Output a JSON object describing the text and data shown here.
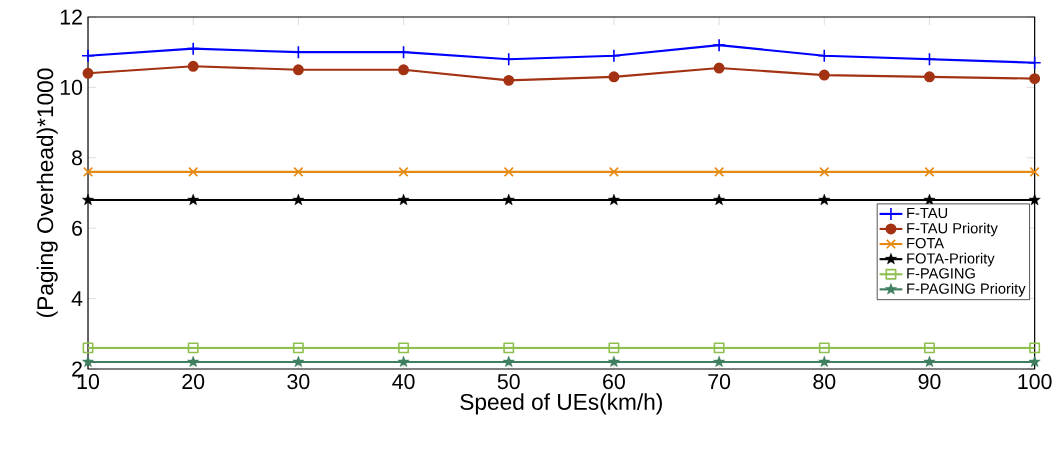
{
  "chart_data": {
    "type": "line",
    "xlabel": "Speed of UEs(km/h)",
    "ylabel": "(Paging Overhead)*1000",
    "x": [
      10,
      20,
      30,
      40,
      50,
      60,
      70,
      80,
      90,
      100
    ],
    "xlim": [
      10,
      100
    ],
    "xticks": [
      10,
      20,
      30,
      40,
      50,
      60,
      70,
      80,
      90,
      100
    ],
    "ylim": [
      2,
      12
    ],
    "yticks": [
      2,
      4,
      6,
      8,
      10,
      12
    ],
    "legend": "right",
    "grid": false,
    "line_style": "solid",
    "series": [
      {
        "name": "F-TAU",
        "color": "#0000ff",
        "marker": "plus",
        "values": [
          10.9,
          11.1,
          11.0,
          11.0,
          10.8,
          10.9,
          11.2,
          10.9,
          10.8,
          10.7
        ]
      },
      {
        "name": "F-TAU Priority",
        "color": "#a33212",
        "marker": "circle",
        "values": [
          10.4,
          10.6,
          10.5,
          10.5,
          10.2,
          10.3,
          10.55,
          10.35,
          10.3,
          10.25
        ]
      },
      {
        "name": "FOTA",
        "color": "#e58a13",
        "marker": "cross",
        "values": [
          7.6,
          7.6,
          7.6,
          7.6,
          7.6,
          7.6,
          7.6,
          7.6,
          7.6,
          7.6
        ]
      },
      {
        "name": "FOTA-Priority",
        "color": "#000000",
        "marker": "star",
        "values": [
          6.8,
          6.8,
          6.8,
          6.8,
          6.8,
          6.8,
          6.8,
          6.8,
          6.8,
          6.8
        ]
      },
      {
        "name": "F-PAGING",
        "color": "#8fc04f",
        "marker": "square",
        "values": [
          2.6,
          2.6,
          2.6,
          2.6,
          2.6,
          2.6,
          2.6,
          2.6,
          2.6,
          2.6
        ]
      },
      {
        "name": "F-PAGING Priority",
        "color": "#3f7f5f",
        "marker": "star",
        "values": [
          2.2,
          2.2,
          2.2,
          2.2,
          2.2,
          2.2,
          2.2,
          2.2,
          2.2,
          2.2
        ]
      }
    ]
  }
}
